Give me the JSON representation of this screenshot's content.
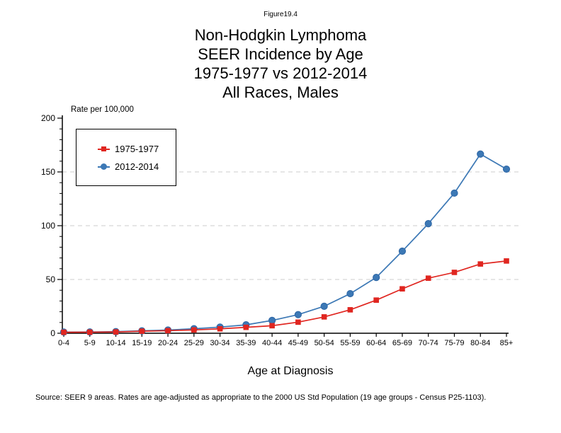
{
  "header": {
    "figure_label": "Figure19.4",
    "title_lines": [
      "Non-Hodgkin Lymphoma",
      "SEER Incidence by Age",
      "1975-1977 vs 2012-2014",
      "All Races, Males"
    ]
  },
  "chart_data": {
    "type": "line",
    "title": "Non-Hodgkin Lymphoma SEER Incidence by Age, 1975-1977 vs 2012-2014, All Races, Males",
    "xlabel": "Age at Diagnosis",
    "ylabel": "Rate per 100,000",
    "ylim": [
      0,
      200
    ],
    "yticks": [
      0,
      50,
      100,
      150,
      200
    ],
    "y_minor_tick_step": 10,
    "gridlines": {
      "values": [
        50,
        100,
        150
      ],
      "style": "dashed",
      "color": "#cccccc"
    },
    "legend_position": "top-left-inside",
    "categories": [
      "0-4",
      "5-9",
      "10-14",
      "15-19",
      "20-24",
      "25-29",
      "30-34",
      "35-39",
      "40-44",
      "45-49",
      "50-54",
      "55-59",
      "60-64",
      "65-69",
      "70-74",
      "75-79",
      "80-84",
      "85+"
    ],
    "series": [
      {
        "name": "1975-1977",
        "marker": "square",
        "color": "#e02620",
        "edge_color": "#c31f1a",
        "values": [
          0.9,
          1.0,
          1.2,
          1.9,
          2.4,
          3.1,
          4.1,
          5.5,
          7.0,
          10.3,
          15.2,
          21.8,
          30.8,
          41.3,
          51.2,
          56.6,
          64.4,
          67.2
        ]
      },
      {
        "name": "2012-2014",
        "marker": "circle",
        "color": "#3c78b5",
        "edge_color": "#2d66a5",
        "values": [
          1.1,
          1.2,
          1.5,
          2.2,
          3.0,
          4.2,
          5.7,
          7.8,
          11.9,
          17.3,
          25.1,
          36.8,
          51.9,
          76.3,
          101.9,
          130.3,
          166.6,
          152.6
        ]
      }
    ]
  },
  "footer": {
    "source_note": "Source: SEER 9 areas. Rates are age-adjusted as appropriate to the 2000 US Std Population (19 age groups - Census P25-1103)."
  }
}
